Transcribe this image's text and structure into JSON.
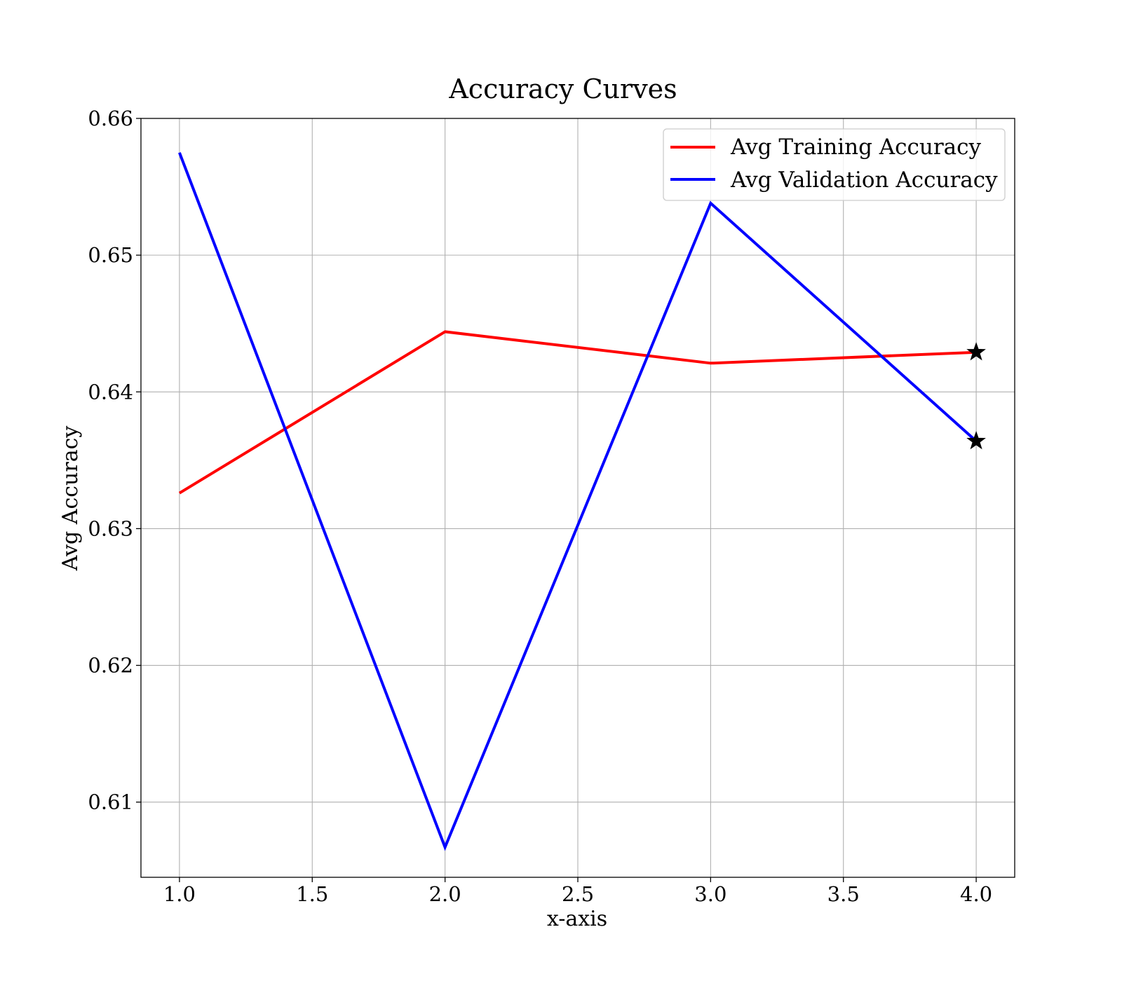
{
  "chart_data": {
    "type": "line",
    "title": "Accuracy Curves",
    "xlabel": "x-axis",
    "ylabel": "Avg Accuracy",
    "xlim": [
      0.855,
      4.145
    ],
    "ylim": [
      0.6045,
      0.66
    ],
    "xticks": [
      1.0,
      1.5,
      2.0,
      2.5,
      3.0,
      3.5,
      4.0
    ],
    "xtick_labels": [
      "1.0",
      "1.5",
      "2.0",
      "2.5",
      "3.0",
      "3.5",
      "4.0"
    ],
    "yticks": [
      0.61,
      0.62,
      0.63,
      0.64,
      0.65,
      0.66
    ],
    "ytick_labels": [
      "0.61",
      "0.62",
      "0.63",
      "0.64",
      "0.65",
      "0.66"
    ],
    "grid": true,
    "legend_position": "top-right",
    "series": [
      {
        "name": "Avg Training Accuracy",
        "color": "#ff0000",
        "x": [
          1.0,
          2.0,
          3.0,
          4.0
        ],
        "y": [
          0.6326,
          0.6444,
          0.6421,
          0.6429
        ]
      },
      {
        "name": "Avg Validation Accuracy",
        "color": "#0000ff",
        "x": [
          1.0,
          2.0,
          3.0,
          4.0
        ],
        "y": [
          0.6575,
          0.6067,
          0.6538,
          0.6364
        ]
      }
    ],
    "markers": [
      {
        "x": 4.0,
        "y": 0.6429,
        "symbol": "star",
        "color": "#000000"
      },
      {
        "x": 4.0,
        "y": 0.6364,
        "symbol": "star",
        "color": "#000000"
      }
    ]
  }
}
